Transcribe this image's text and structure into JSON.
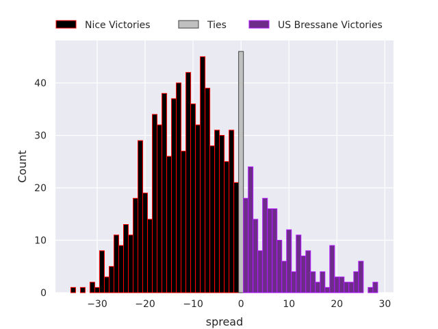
{
  "chart_data": {
    "type": "bar",
    "title": "",
    "xlabel": "spread",
    "ylabel": "Count",
    "xlim": [
      -38.7,
      31.8
    ],
    "ylim": [
      0,
      48.1
    ],
    "xticks": [
      -30,
      -20,
      -10,
      0,
      10,
      20,
      30
    ],
    "yticks": [
      0,
      10,
      20,
      30,
      40
    ],
    "grid": true,
    "legend_placement": "top, above plot",
    "series": [
      {
        "name": "Nice Victories",
        "color": "#000000",
        "edge": "#ff0000",
        "x": [
          -35,
          -33,
          -31,
          -30,
          -29,
          -28,
          -27,
          -26,
          -25,
          -24,
          -23,
          -22,
          -21,
          -20,
          -19,
          -18,
          -17,
          -16,
          -15,
          -14,
          -13,
          -12,
          -11,
          -10,
          -9,
          -8,
          -7,
          -6,
          -5,
          -4,
          -3,
          -2,
          -1
        ],
        "values": [
          1,
          1,
          2,
          1,
          8,
          3,
          5,
          11,
          9,
          13,
          11,
          18,
          29,
          19,
          14,
          34,
          32,
          38,
          26,
          37,
          40,
          27,
          42,
          36,
          32,
          45,
          39,
          28,
          31,
          30,
          25,
          31,
          21
        ]
      },
      {
        "name": "Ties",
        "color": "#c0c0c0",
        "edge": "#404040",
        "x": [
          0
        ],
        "values": [
          46
        ]
      },
      {
        "name": "US Bressane Victories",
        "color": "#6c2c88",
        "edge": "#b31aff",
        "x": [
          1,
          2,
          3,
          4,
          5,
          6,
          7,
          8,
          9,
          10,
          11,
          12,
          13,
          14,
          15,
          16,
          17,
          18,
          19,
          20,
          21,
          22,
          23,
          24,
          25,
          27,
          28
        ],
        "values": [
          18,
          24,
          14,
          8,
          18,
          16,
          16,
          10,
          6,
          12,
          4,
          11,
          7,
          8,
          4,
          2,
          4,
          1,
          9,
          3,
          3,
          2,
          2,
          4,
          6,
          1,
          2
        ]
      }
    ]
  }
}
